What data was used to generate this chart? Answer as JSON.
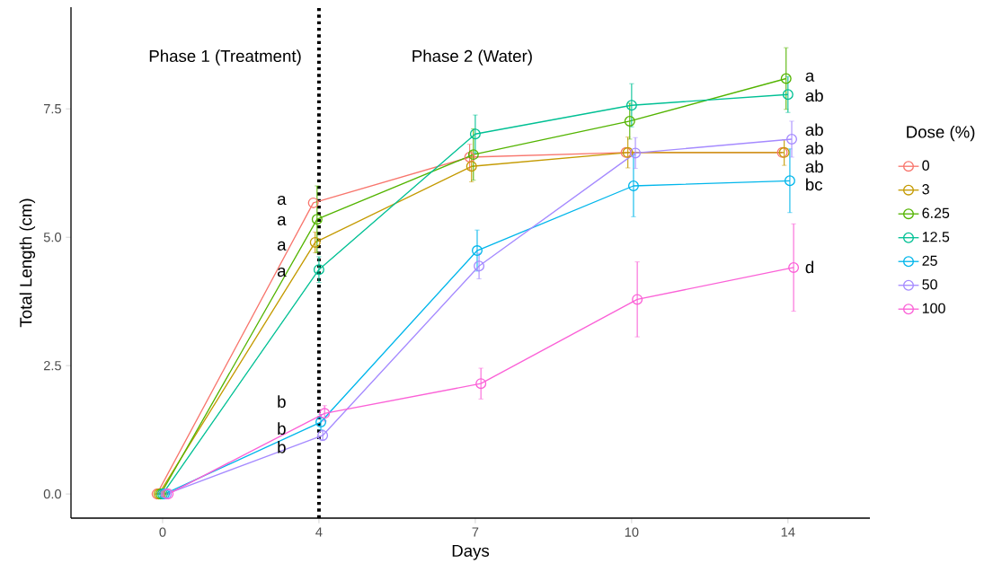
{
  "chart_data": {
    "type": "line",
    "xlabel": "Days",
    "ylabel": "Total Length (cm)",
    "legend_title": "Dose (%)",
    "categories": [
      "0",
      "4",
      "7",
      "10",
      "14"
    ],
    "ylim": [
      -0.47,
      9.48
    ],
    "yticks": [
      {
        "value": 0,
        "label": "0.0"
      },
      {
        "value": 2.5,
        "label": "2.5"
      },
      {
        "value": 5,
        "label": "5.0"
      },
      {
        "value": 7.5,
        "label": "7.5"
      }
    ],
    "grid": false,
    "legend": "right",
    "marker": "circle",
    "line_style": "solid",
    "series": [
      {
        "name": "0",
        "color": "#F8766D",
        "values": [
          0,
          5.67,
          6.56,
          6.65,
          6.65
        ],
        "errors": [
          0,
          null,
          0.25,
          null,
          null
        ]
      },
      {
        "name": "3",
        "color": "#C49A00",
        "values": [
          0,
          4.9,
          6.38,
          6.65,
          6.65
        ],
        "errors": [
          0,
          0.2,
          0.3,
          0.3,
          0.25
        ]
      },
      {
        "name": "6.25",
        "color": "#53B400",
        "values": [
          0,
          5.35,
          6.61,
          7.26,
          8.09
        ],
        "errors": [
          0,
          0.65,
          0.5,
          0.35,
          0.6
        ]
      },
      {
        "name": "12.5",
        "color": "#00C094",
        "values": [
          0,
          4.37,
          7.01,
          7.57,
          7.78
        ],
        "errors": [
          0,
          0.25,
          0.37,
          0.42,
          0.35
        ]
      },
      {
        "name": "25",
        "color": "#00B6EB",
        "values": [
          0,
          1.4,
          4.74,
          6.0,
          6.1
        ],
        "errors": [
          0,
          0.15,
          0.4,
          0.6,
          0.62
        ]
      },
      {
        "name": "50",
        "color": "#A58AFF",
        "values": [
          0,
          1.14,
          4.44,
          6.64,
          6.91
        ],
        "errors": [
          0,
          0.1,
          0.25,
          0.3,
          0.35
        ]
      },
      {
        "name": "100",
        "color": "#FB61D7",
        "values": [
          0,
          1.57,
          2.15,
          3.79,
          4.41
        ],
        "errors": [
          0,
          0.15,
          0.3,
          0.73,
          0.85
        ]
      }
    ],
    "ref_lines": [
      {
        "axis": "x",
        "value": "4",
        "line_style": "dotted",
        "color": "#000000"
      }
    ],
    "annotations": [
      "Phase 1 (Treatment)",
      "Phase 2 (Water)",
      {
        "text": "a",
        "x": "4",
        "y": 5.72
      },
      {
        "text": "a",
        "x": "4",
        "y": 5.32
      },
      {
        "text": "a",
        "x": "4",
        "y": 4.83
      },
      {
        "text": "a",
        "x": "4",
        "y": 4.32
      },
      {
        "text": "b",
        "x": "4",
        "y": 1.8
      },
      {
        "text": "b",
        "x": "4",
        "y": 1.24
      },
      {
        "text": "b",
        "x": "4",
        "y": 0.95
      },
      {
        "text": "a",
        "x": "14",
        "y": 8.1
      },
      {
        "text": "ab",
        "x": "14",
        "y": 7.78
      },
      {
        "text": "ab",
        "x": "14",
        "y": 6.91
      },
      {
        "text": "ab",
        "x": "14",
        "y": 6.65
      },
      {
        "text": "ab",
        "x": "14",
        "y": 6.65
      },
      {
        "text": "bc",
        "x": "14",
        "y": 6.03
      },
      {
        "text": "d",
        "x": "14",
        "y": 4.42
      }
    ]
  }
}
